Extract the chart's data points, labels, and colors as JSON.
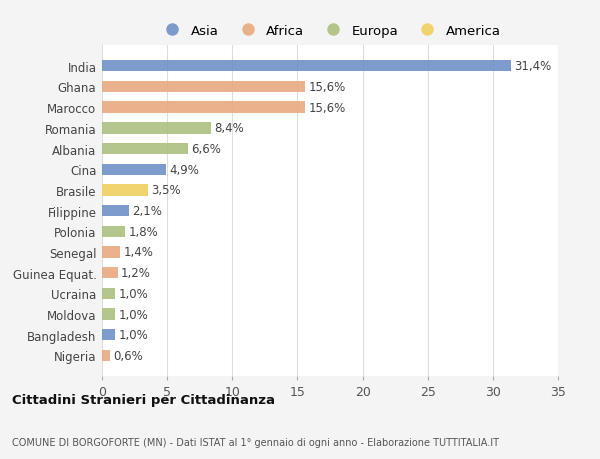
{
  "countries": [
    "India",
    "Ghana",
    "Marocco",
    "Romania",
    "Albania",
    "Cina",
    "Brasile",
    "Filippine",
    "Polonia",
    "Senegal",
    "Guinea Equat.",
    "Ucraina",
    "Moldova",
    "Bangladesh",
    "Nigeria"
  ],
  "values": [
    31.4,
    15.6,
    15.6,
    8.4,
    6.6,
    4.9,
    3.5,
    2.1,
    1.8,
    1.4,
    1.2,
    1.0,
    1.0,
    1.0,
    0.6
  ],
  "labels": [
    "31,4%",
    "15,6%",
    "15,6%",
    "8,4%",
    "6,6%",
    "4,9%",
    "3,5%",
    "2,1%",
    "1,8%",
    "1,4%",
    "1,2%",
    "1,0%",
    "1,0%",
    "1,0%",
    "0,6%"
  ],
  "continents": [
    "Asia",
    "Africa",
    "Africa",
    "Europa",
    "Europa",
    "Asia",
    "America",
    "Asia",
    "Europa",
    "Africa",
    "Africa",
    "Europa",
    "Europa",
    "Asia",
    "Africa"
  ],
  "colors": {
    "Asia": "#7090c8",
    "Africa": "#e8aa80",
    "Europa": "#adc080",
    "America": "#f0d060"
  },
  "legend_order": [
    "Asia",
    "Africa",
    "Europa",
    "America"
  ],
  "xlim": [
    0,
    35
  ],
  "xticks": [
    0,
    5,
    10,
    15,
    20,
    25,
    30,
    35
  ],
  "title": "Cittadini Stranieri per Cittadinanza",
  "subtitle": "COMUNE DI BORGOFORTE (MN) - Dati ISTAT al 1° gennaio di ogni anno - Elaborazione TUTTITALIA.IT",
  "background_color": "#f4f4f4",
  "bar_background": "#ffffff",
  "grid_color": "#dddddd",
  "bar_height": 0.55,
  "label_fontsize": 8.5,
  "ytick_fontsize": 8.5,
  "xtick_fontsize": 9
}
